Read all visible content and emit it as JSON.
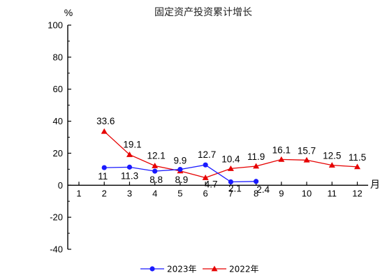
{
  "chart_data": {
    "type": "line",
    "title": "固定资产投资累计增长",
    "y_unit": "%",
    "x_unit": "月",
    "ylim": [
      -40,
      100
    ],
    "y_ticks": [
      "100",
      "80",
      "60",
      "40",
      "20",
      "0",
      "-20",
      "-40"
    ],
    "y_tick_values": [
      100,
      80,
      60,
      40,
      20,
      0,
      -20,
      -40
    ],
    "x_ticks": [
      "1",
      "2",
      "3",
      "4",
      "5",
      "6",
      "7",
      "8",
      "9",
      "10",
      "11",
      "12"
    ],
    "x_tick_values": [
      1,
      2,
      3,
      4,
      5,
      6,
      7,
      8,
      9,
      10,
      11,
      12
    ],
    "grid": false,
    "legend_position": "bottom",
    "series": [
      {
        "name": "2023年",
        "color": "#1a1aff",
        "marker": "circle",
        "x": [
          2,
          3,
          4,
          5,
          6,
          7,
          8
        ],
        "values": [
          11,
          11.3,
          8.8,
          9.9,
          12.7,
          2.1,
          2.4
        ],
        "labels": [
          "11",
          "11.3",
          "8.8",
          "9.9",
          "12.7",
          "2.1",
          "2.4"
        ]
      },
      {
        "name": "2022年",
        "color": "#e60000",
        "marker": "triangle",
        "x": [
          2,
          3,
          4,
          5,
          6,
          7,
          8,
          9,
          10,
          11,
          12
        ],
        "values": [
          33.6,
          19.1,
          12.1,
          8.9,
          4.7,
          10.4,
          11.9,
          16.1,
          15.7,
          12.5,
          11.5
        ],
        "labels": [
          "33.6",
          "19.1",
          "12.1",
          "8.9",
          "4.7",
          "10.4",
          "11.9",
          "16.1",
          "15.7",
          "12.5",
          "11.5"
        ]
      }
    ]
  }
}
